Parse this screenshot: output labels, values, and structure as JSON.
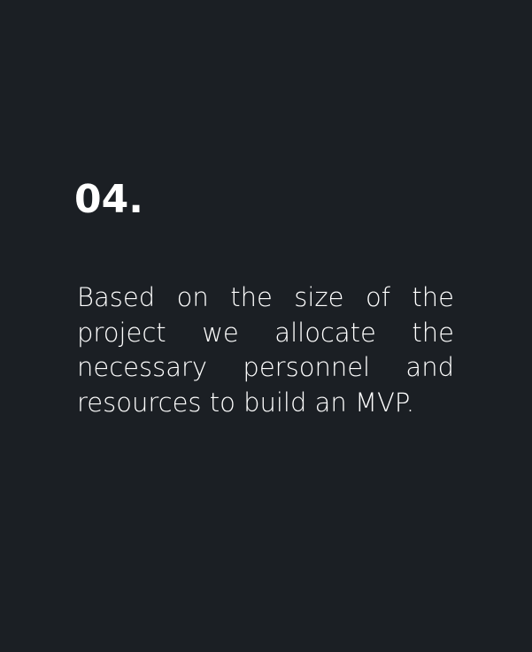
{
  "card": {
    "step_number": "04.",
    "description": "Based on the size of the project we allocate the necessary personnel and resources to build an MVP."
  },
  "colors": {
    "background": "#1b1f24",
    "text": "#ffffff"
  }
}
